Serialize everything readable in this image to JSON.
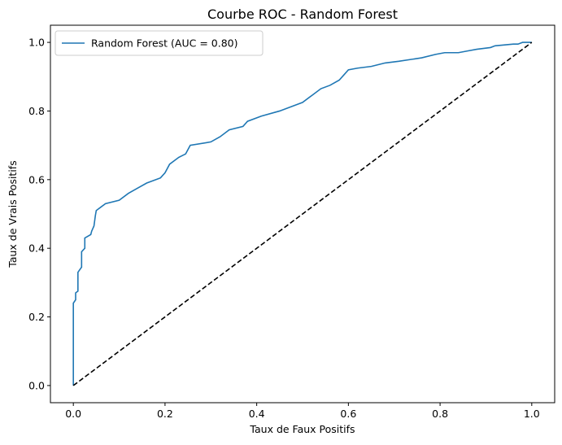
{
  "chart_data": {
    "type": "line",
    "title": "Courbe ROC - Random Forest",
    "xlabel": "Taux de Faux Positifs",
    "ylabel": "Taux de Vrais Positifs",
    "xlim": [
      -0.05,
      1.05
    ],
    "ylim": [
      -0.05,
      1.05
    ],
    "x_ticks": [
      0.0,
      0.2,
      0.4,
      0.6,
      0.8,
      1.0
    ],
    "y_ticks": [
      0.0,
      0.2,
      0.4,
      0.6,
      0.8,
      1.0
    ],
    "x_tick_labels": [
      "0.0",
      "0.2",
      "0.4",
      "0.6",
      "0.8",
      "1.0"
    ],
    "y_tick_labels": [
      "0.0",
      "0.2",
      "0.4",
      "0.6",
      "0.8",
      "1.0"
    ],
    "grid": false,
    "legend_position": "upper-left",
    "series": [
      {
        "name": "Random Forest (AUC = 0.80)",
        "color": "#1f77b4",
        "style": "solid",
        "x": [
          0.0,
          0.0,
          0.005,
          0.005,
          0.01,
          0.01,
          0.018,
          0.018,
          0.025,
          0.025,
          0.038,
          0.04,
          0.045,
          0.048,
          0.05,
          0.06,
          0.07,
          0.1,
          0.12,
          0.14,
          0.16,
          0.19,
          0.2,
          0.21,
          0.23,
          0.245,
          0.255,
          0.3,
          0.32,
          0.34,
          0.37,
          0.38,
          0.41,
          0.45,
          0.48,
          0.5,
          0.52,
          0.54,
          0.56,
          0.58,
          0.59,
          0.6,
          0.62,
          0.65,
          0.68,
          0.71,
          0.76,
          0.79,
          0.81,
          0.84,
          0.86,
          0.88,
          0.91,
          0.92,
          0.96,
          0.97,
          0.98,
          1.0
        ],
        "y": [
          0.0,
          0.24,
          0.25,
          0.27,
          0.275,
          0.33,
          0.345,
          0.39,
          0.4,
          0.43,
          0.44,
          0.45,
          0.465,
          0.495,
          0.51,
          0.52,
          0.53,
          0.54,
          0.56,
          0.575,
          0.59,
          0.605,
          0.62,
          0.645,
          0.665,
          0.675,
          0.7,
          0.71,
          0.725,
          0.745,
          0.755,
          0.77,
          0.785,
          0.8,
          0.815,
          0.825,
          0.845,
          0.865,
          0.875,
          0.89,
          0.905,
          0.92,
          0.925,
          0.93,
          0.94,
          0.945,
          0.955,
          0.965,
          0.97,
          0.97,
          0.975,
          0.98,
          0.985,
          0.99,
          0.995,
          0.995,
          1.0,
          1.0
        ]
      },
      {
        "name": "",
        "color": "#000000",
        "style": "dashed",
        "x": [
          0.0,
          1.0
        ],
        "y": [
          0.0,
          1.0
        ]
      }
    ]
  }
}
